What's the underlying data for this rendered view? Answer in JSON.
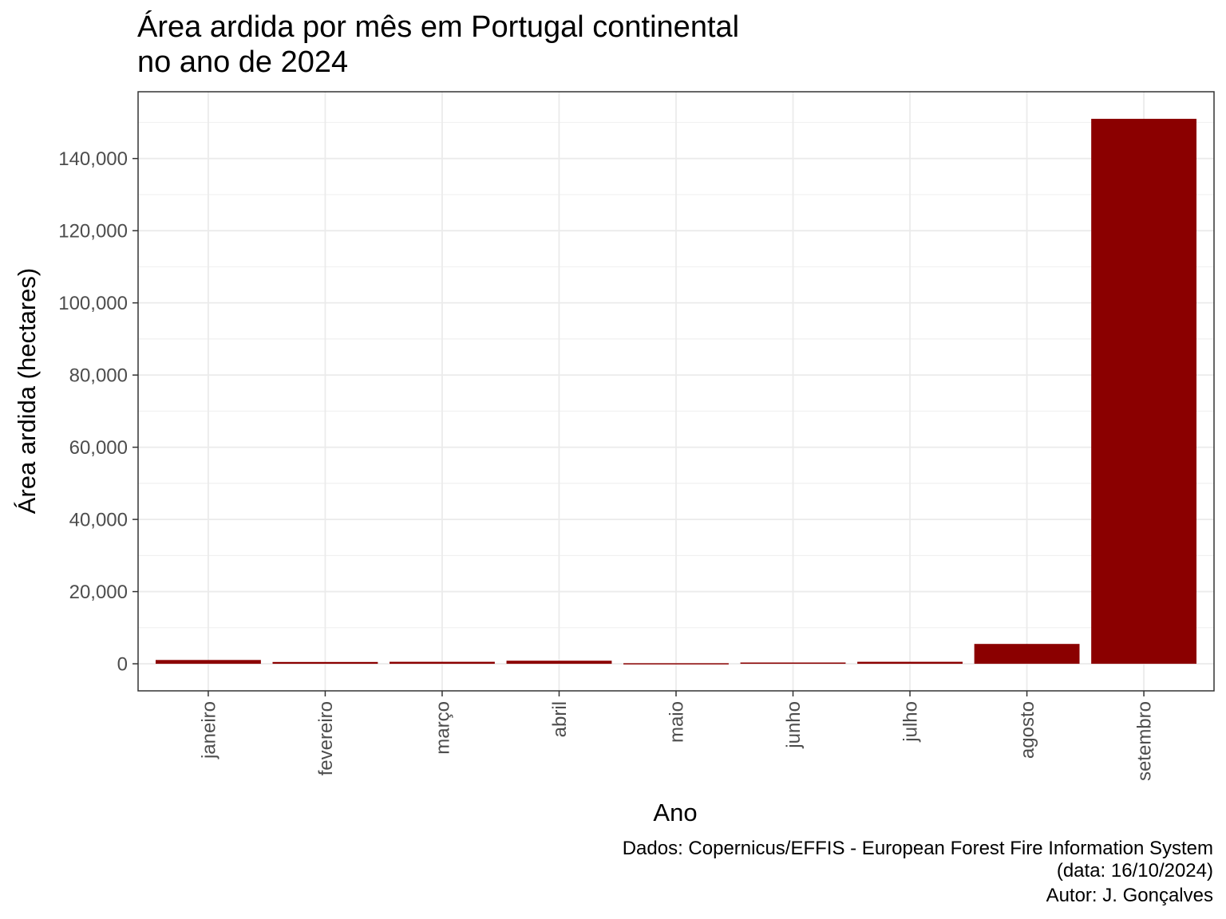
{
  "chart_data": {
    "type": "bar",
    "title_lines": [
      "Área ardida por mês em Portugal continental",
      "no ano de 2024"
    ],
    "xlabel": "Ano",
    "ylabel": "Área ardida (hectares)",
    "categories": [
      "janeiro",
      "fevereiro",
      "março",
      "abril",
      "maio",
      "junho",
      "julho",
      "agosto",
      "setembro"
    ],
    "values": [
      1050,
      500,
      550,
      850,
      150,
      350,
      550,
      5500,
      151000
    ],
    "ylim": [
      -7500,
      158500
    ],
    "yticks": [
      0,
      20000,
      40000,
      60000,
      80000,
      100000,
      120000,
      140000
    ],
    "ytick_labels": [
      "0",
      "20,000",
      "40,000",
      "60,000",
      "80,000",
      "100,000",
      "120,000",
      "140,000"
    ],
    "grid": true,
    "bar_color": "#8b0000",
    "caption_lines": [
      "Dados: Copernicus/EFFIS - European Forest Fire Information System",
      "(data: 16/10/2024)",
      "Autor: J. Gonçalves"
    ]
  }
}
